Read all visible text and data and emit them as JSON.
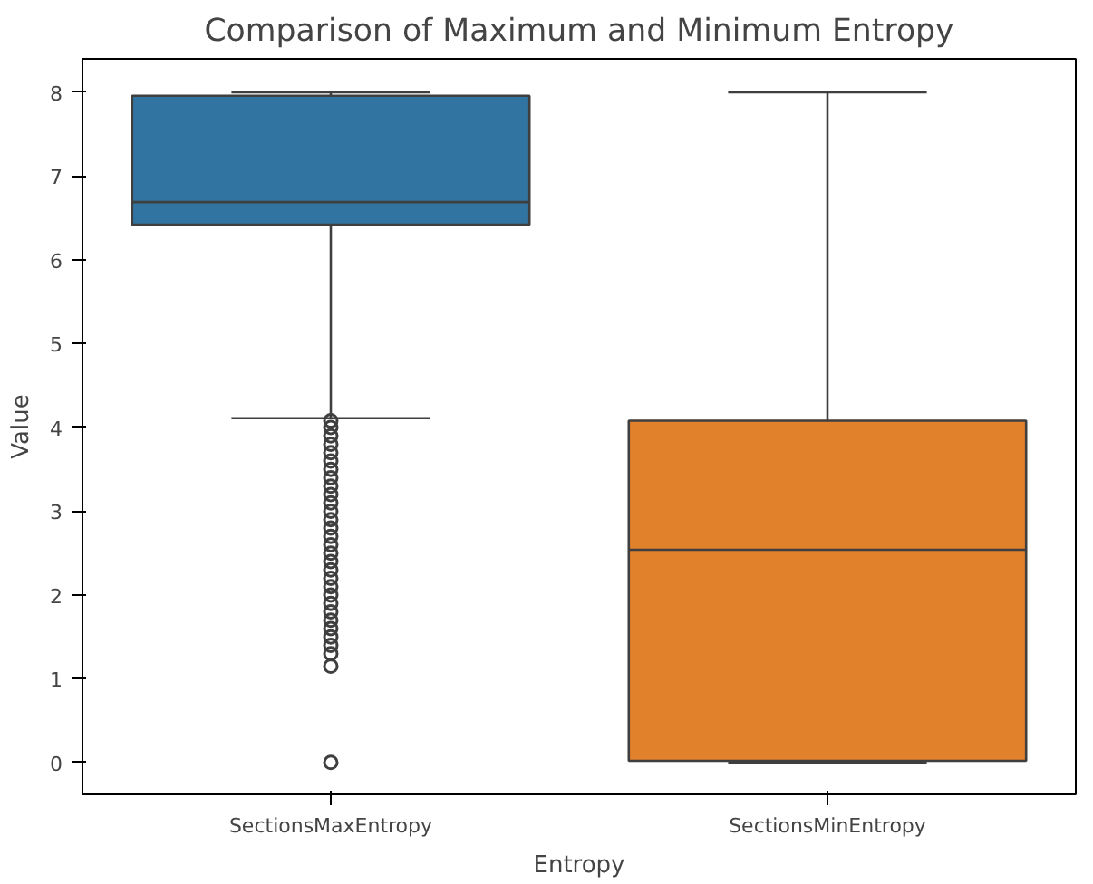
{
  "chart_data": {
    "type": "box",
    "title": "Comparison of Maximum and Minimum Entropy",
    "xlabel": "Entropy",
    "ylabel": "Value",
    "categories": [
      "SectionsMaxEntropy",
      "SectionsMinEntropy"
    ],
    "colors": [
      "#3274a1",
      "#e1812c"
    ],
    "boxes": [
      {
        "low": 4.11,
        "q1": 6.42,
        "median": 6.69,
        "q3": 7.96,
        "high": 8.0,
        "outliers": [
          4.08,
          4.0,
          3.9,
          3.8,
          3.7,
          3.6,
          3.5,
          3.4,
          3.3,
          3.2,
          3.1,
          3.0,
          2.9,
          2.8,
          2.7,
          2.6,
          2.5,
          2.4,
          2.3,
          2.2,
          2.1,
          2.0,
          1.9,
          1.8,
          1.7,
          1.6,
          1.5,
          1.4,
          1.3,
          1.15,
          0.0
        ]
      },
      {
        "low": 0.0,
        "q1": 0.02,
        "median": 2.54,
        "q3": 4.08,
        "high": 8.0
      }
    ],
    "ylim": [
      -0.38,
      8.4
    ],
    "yticks": [
      0,
      1,
      2,
      3,
      4,
      5,
      6,
      7,
      8
    ],
    "grid": false
  }
}
